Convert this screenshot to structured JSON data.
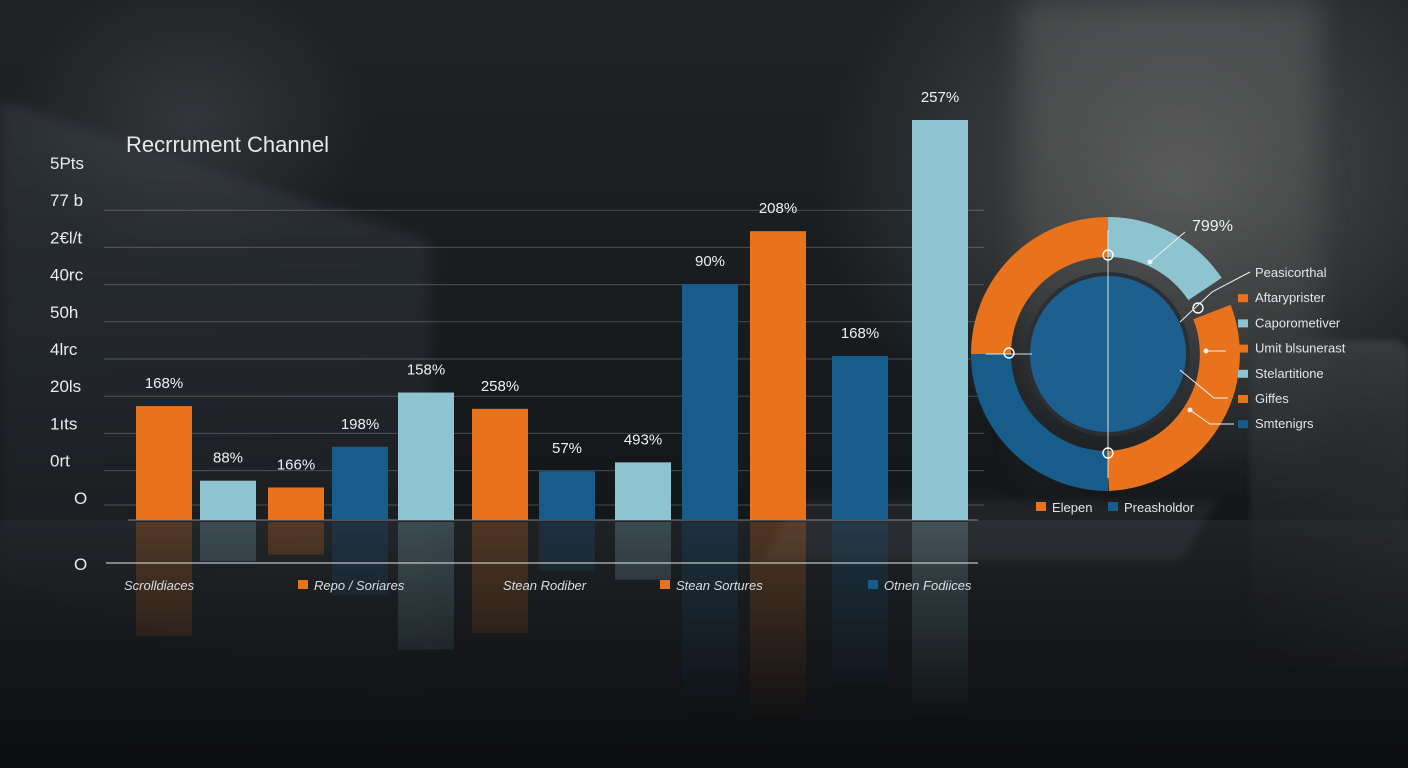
{
  "chart_data": {
    "type": "bar",
    "title": "Recrrument Channel",
    "yticks": [
      "5Pts",
      "77 b",
      "2€l/t",
      "40rc",
      "50h",
      "4lrc",
      "20ls",
      "1ıts",
      "0rt",
      "O"
    ],
    "axis_zero": "O",
    "grid": true,
    "bars": [
      {
        "label": "168%",
        "value": 168,
        "color": "#e8731c"
      },
      {
        "label": "88%",
        "value": 58,
        "color": "#8ec4d0"
      },
      {
        "label": "166%",
        "value": 48,
        "color": "#e8731c"
      },
      {
        "label": "198%",
        "value": 108,
        "color": "#175d8c"
      },
      {
        "label": "158%",
        "value": 188,
        "color": "#8ec4d0"
      },
      {
        "label": "258%",
        "value": 164,
        "color": "#e8731c"
      },
      {
        "label": "57%",
        "value": 72,
        "color": "#175d8c"
      },
      {
        "label": "493%",
        "value": 85,
        "color": "#8ec4d0"
      },
      {
        "label": "90%",
        "value": 348,
        "color": "#175d8c"
      },
      {
        "label": "208%",
        "value": 426,
        "color": "#e8731c"
      },
      {
        "label": "168%",
        "value": 242,
        "color": "#175d8c"
      },
      {
        "label": "257%",
        "value": 590,
        "color": "#8ec4d0"
      }
    ],
    "categories": [
      {
        "label": "Scrolldiaces",
        "marker": null
      },
      {
        "label": "Repo / Soriares",
        "marker": "#e8731c"
      },
      {
        "label": "Stean Rodiber",
        "marker": null
      },
      {
        "label": "Stean Sortures",
        "marker": "#e8731c"
      },
      {
        "label": "Otnen Fodiices",
        "marker": "#175d8c"
      }
    ]
  },
  "donut": {
    "value_label": "799%",
    "legend": [
      {
        "label": "Peasicorthal",
        "color": null
      },
      {
        "label": "Aftaryprister",
        "color": "#e8731c"
      },
      {
        "label": "Caporometiver",
        "color": "#8ec4d0"
      },
      {
        "label": "Umit blsunerast",
        "color": "#e8731c"
      },
      {
        "label": "Stelartitione",
        "color": "#8ec4d0"
      },
      {
        "label": "Giffes",
        "color": "#e8731c"
      },
      {
        "label": "Smtenigrs",
        "color": "#175d8c"
      }
    ],
    "bottom_legend": [
      {
        "label": "Elepen",
        "color": "#e8731c"
      },
      {
        "label": "Preasholdor",
        "color": "#175d8c"
      }
    ]
  }
}
